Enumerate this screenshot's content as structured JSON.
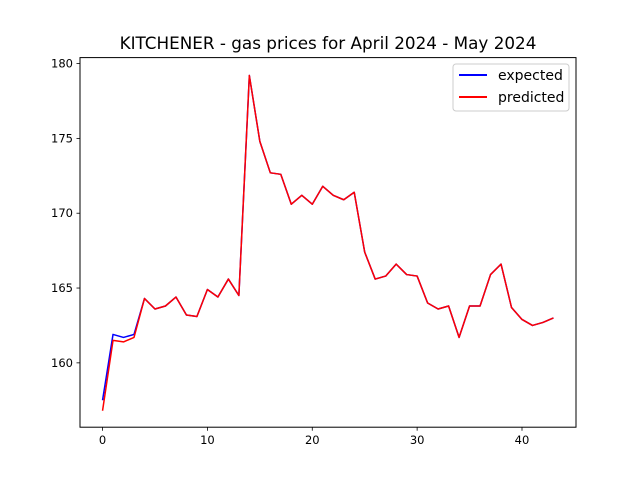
{
  "chart_data": {
    "type": "line",
    "title": "KITCHENER - gas prices for April 2024 - May 2024",
    "xlabel": "",
    "ylabel": "",
    "xlim": [
      -2.15,
      45.15
    ],
    "ylim": [
      155.7,
      180.4
    ],
    "xticks": [
      0,
      10,
      20,
      30,
      40
    ],
    "yticks": [
      160,
      165,
      170,
      175,
      180
    ],
    "grid": false,
    "legend_position": "top-right",
    "x": [
      0,
      1,
      2,
      3,
      4,
      5,
      6,
      7,
      8,
      9,
      10,
      11,
      12,
      13,
      14,
      15,
      16,
      17,
      18,
      19,
      20,
      21,
      22,
      23,
      24,
      25,
      26,
      27,
      28,
      29,
      30,
      31,
      32,
      33,
      34,
      35,
      36,
      37,
      38,
      39,
      40,
      41,
      42,
      43
    ],
    "series": [
      {
        "name": "expected",
        "color": "#0000ff",
        "values": [
          157.5,
          161.9,
          161.7,
          161.9,
          164.3,
          163.6,
          163.8,
          164.4,
          163.2,
          163.1,
          164.9,
          164.4,
          165.6,
          164.5,
          179.2,
          174.8,
          172.7,
          172.6,
          170.6,
          171.2,
          170.6,
          171.8,
          171.2,
          170.9,
          171.4,
          167.4,
          165.6,
          165.8,
          166.6,
          165.9,
          165.8,
          164.0,
          163.6,
          163.8,
          161.7,
          163.8,
          163.8,
          165.9,
          166.6,
          163.7,
          162.9,
          162.5,
          162.7,
          163.0
        ]
      },
      {
        "name": "predicted",
        "color": "#ff0000",
        "values": [
          156.8,
          161.5,
          161.4,
          161.7,
          164.3,
          163.6,
          163.8,
          164.4,
          163.2,
          163.1,
          164.9,
          164.4,
          165.6,
          164.5,
          179.2,
          174.8,
          172.7,
          172.6,
          170.6,
          171.2,
          170.6,
          171.8,
          171.2,
          170.9,
          171.4,
          167.4,
          165.6,
          165.8,
          166.6,
          165.9,
          165.8,
          164.0,
          163.6,
          163.8,
          161.7,
          163.8,
          163.8,
          165.9,
          166.6,
          163.7,
          162.9,
          162.5,
          162.7,
          163.0
        ]
      }
    ]
  }
}
